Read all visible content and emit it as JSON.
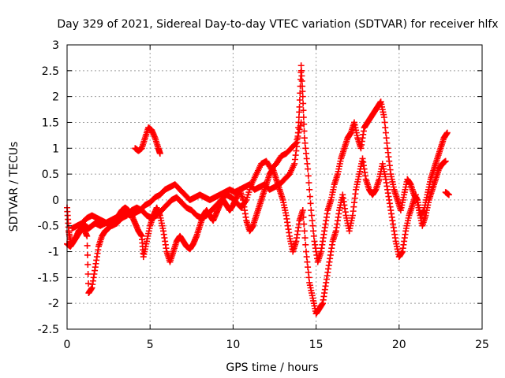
{
  "chart_data": {
    "type": "scatter",
    "title": "Day 329 of 2021, Sidereal Day-to-day VTEC variation (SDTVAR) for receiver hlfx",
    "xlabel": "GPS time / hours",
    "ylabel": "SDTVAR / TECUs",
    "xlim": [
      0,
      25
    ],
    "ylim": [
      -2.5,
      3
    ],
    "xticks": [
      0,
      5,
      10,
      15,
      20,
      25
    ],
    "xtick_labels": [
      "0",
      "5",
      "10",
      "15",
      "20",
      "25"
    ],
    "yticks": [
      -2.5,
      -2,
      -1.5,
      -1,
      -0.5,
      0,
      0.5,
      1,
      1.5,
      2,
      2.5,
      3
    ],
    "ytick_labels": [
      "-2.5",
      "-2",
      "-1.5",
      "-1",
      "-0.5",
      "0",
      "0.5",
      "1",
      "1.5",
      "2",
      "2.5",
      "3"
    ],
    "grid": true,
    "marker": "+",
    "series": [
      {
        "color": "#ff0000",
        "segments": [
          [
            [
              0.0,
              -0.15
            ],
            [
              0.1,
              -0.6
            ],
            [
              0.2,
              -0.8
            ],
            [
              0.3,
              -0.85
            ],
            [
              0.5,
              -0.75
            ],
            [
              0.7,
              -0.6
            ],
            [
              0.9,
              -0.55
            ],
            [
              1.1,
              -0.5
            ],
            [
              1.3,
              -0.55
            ],
            [
              1.5,
              -0.5
            ],
            [
              1.7,
              -0.45
            ],
            [
              2.0,
              -0.5
            ],
            [
              2.3,
              -0.45
            ],
            [
              2.6,
              -0.4
            ],
            [
              2.9,
              -0.35
            ],
            [
              3.2,
              -0.3
            ],
            [
              3.5,
              -0.25
            ],
            [
              3.8,
              -0.3
            ],
            [
              4.1,
              -0.25
            ],
            [
              4.4,
              -0.2
            ],
            [
              4.7,
              -0.1
            ],
            [
              5.0,
              -0.05
            ],
            [
              5.3,
              0.05
            ],
            [
              5.6,
              0.1
            ],
            [
              5.9,
              0.2
            ],
            [
              6.2,
              0.25
            ],
            [
              6.5,
              0.3
            ],
            [
              6.8,
              0.2
            ],
            [
              7.1,
              0.1
            ],
            [
              7.4,
              0.0
            ],
            [
              7.7,
              0.05
            ],
            [
              8.0,
              0.1
            ],
            [
              8.3,
              0.05
            ],
            [
              8.6,
              0.0
            ],
            [
              8.9,
              0.05
            ],
            [
              9.2,
              0.1
            ],
            [
              9.5,
              0.15
            ],
            [
              9.8,
              0.2
            ],
            [
              10.1,
              0.15
            ],
            [
              10.4,
              0.2
            ],
            [
              10.7,
              0.25
            ],
            [
              11.0,
              0.3
            ],
            [
              11.3,
              0.2
            ],
            [
              11.6,
              0.25
            ],
            [
              11.9,
              0.3
            ],
            [
              12.2,
              0.2
            ],
            [
              12.5,
              0.25
            ],
            [
              12.8,
              0.3
            ],
            [
              13.1,
              0.4
            ],
            [
              13.4,
              0.5
            ],
            [
              13.7,
              0.7
            ],
            [
              13.9,
              1.2
            ],
            [
              14.0,
              1.8
            ],
            [
              14.1,
              2.6
            ],
            [
              14.2,
              2.0
            ],
            [
              14.3,
              1.2
            ],
            [
              14.5,
              0.6
            ],
            [
              14.7,
              -0.2
            ],
            [
              14.9,
              -0.8
            ],
            [
              15.1,
              -1.2
            ],
            [
              15.3,
              -1.0
            ],
            [
              15.5,
              -0.6
            ],
            [
              15.7,
              -0.2
            ],
            [
              15.9,
              0.0
            ],
            [
              16.1,
              0.3
            ],
            [
              16.3,
              0.5
            ],
            [
              16.5,
              0.8
            ],
            [
              16.7,
              1.0
            ],
            [
              16.9,
              1.2
            ],
            [
              17.1,
              1.3
            ],
            [
              17.3,
              1.5
            ],
            [
              17.5,
              1.2
            ],
            [
              17.7,
              1.0
            ],
            [
              17.9,
              1.4
            ],
            [
              18.1,
              1.5
            ],
            [
              18.3,
              1.6
            ],
            [
              18.5,
              1.7
            ],
            [
              18.7,
              1.8
            ],
            [
              18.9,
              1.9
            ],
            [
              19.1,
              1.6
            ],
            [
              19.3,
              1.0
            ],
            [
              19.5,
              0.5
            ],
            [
              19.7,
              0.2
            ],
            [
              19.9,
              0.0
            ],
            [
              20.1,
              -0.2
            ],
            [
              20.3,
              0.1
            ],
            [
              20.5,
              0.4
            ],
            [
              20.7,
              0.3
            ],
            [
              20.9,
              0.1
            ],
            [
              21.1,
              0.0
            ],
            [
              21.3,
              -0.3
            ],
            [
              21.5,
              -0.2
            ],
            [
              21.7,
              0.1
            ],
            [
              21.9,
              0.4
            ],
            [
              22.1,
              0.6
            ],
            [
              22.3,
              0.8
            ],
            [
              22.5,
              1.0
            ],
            [
              22.7,
              1.2
            ],
            [
              22.9,
              1.3
            ]
          ],
          [
            [
              0.0,
              -0.85
            ],
            [
              0.2,
              -0.9
            ],
            [
              0.4,
              -0.8
            ],
            [
              0.6,
              -0.7
            ],
            [
              0.8,
              -0.6
            ],
            [
              1.0,
              -0.55
            ],
            [
              1.2,
              -0.7
            ],
            [
              1.3,
              -1.8
            ],
            [
              1.5,
              -1.7
            ],
            [
              1.7,
              -1.3
            ],
            [
              1.9,
              -0.9
            ],
            [
              2.1,
              -0.7
            ],
            [
              2.3,
              -0.6
            ],
            [
              2.5,
              -0.55
            ],
            [
              2.7,
              -0.45
            ],
            [
              2.9,
              -0.4
            ],
            [
              3.1,
              -0.3
            ],
            [
              3.3,
              -0.2
            ],
            [
              3.5,
              -0.15
            ],
            [
              3.7,
              -0.2
            ],
            [
              3.9,
              -0.3
            ],
            [
              4.1,
              -0.45
            ],
            [
              4.3,
              -0.6
            ],
            [
              4.5,
              -0.7
            ],
            [
              4.6,
              -1.1
            ],
            [
              4.8,
              -0.8
            ],
            [
              5.0,
              -0.5
            ],
            [
              5.2,
              -0.3
            ],
            [
              5.4,
              -0.15
            ],
            [
              5.6,
              -0.3
            ],
            [
              5.8,
              -0.6
            ],
            [
              6.0,
              -1.0
            ],
            [
              6.2,
              -1.2
            ],
            [
              6.4,
              -1.0
            ],
            [
              6.6,
              -0.8
            ],
            [
              6.8,
              -0.7
            ],
            [
              7.0,
              -0.8
            ],
            [
              7.2,
              -0.9
            ],
            [
              7.4,
              -0.95
            ],
            [
              7.6,
              -0.85
            ],
            [
              7.8,
              -0.7
            ],
            [
              8.0,
              -0.5
            ],
            [
              8.2,
              -0.3
            ],
            [
              8.4,
              -0.2
            ],
            [
              8.6,
              -0.3
            ],
            [
              8.8,
              -0.4
            ],
            [
              9.0,
              -0.25
            ],
            [
              9.2,
              -0.1
            ],
            [
              9.4,
              0.0
            ],
            [
              9.6,
              -0.1
            ],
            [
              9.8,
              -0.2
            ],
            [
              10.0,
              -0.1
            ],
            [
              10.2,
              0.05
            ],
            [
              10.4,
              0.2
            ],
            [
              10.6,
              0.0
            ],
            [
              10.8,
              -0.4
            ],
            [
              11.0,
              -0.6
            ],
            [
              11.2,
              -0.5
            ],
            [
              11.4,
              -0.3
            ],
            [
              11.6,
              -0.1
            ],
            [
              11.8,
              0.1
            ],
            [
              12.0,
              0.3
            ],
            [
              12.2,
              0.5
            ],
            [
              12.4,
              0.6
            ],
            [
              12.6,
              0.4
            ],
            [
              12.8,
              0.2
            ],
            [
              13.0,
              0.0
            ],
            [
              13.2,
              -0.3
            ],
            [
              13.4,
              -0.7
            ],
            [
              13.6,
              -1.0
            ],
            [
              13.8,
              -0.8
            ],
            [
              14.0,
              -0.4
            ],
            [
              14.2,
              -0.2
            ],
            [
              14.4,
              -1.0
            ],
            [
              14.6,
              -1.6
            ],
            [
              14.8,
              -1.9
            ],
            [
              15.0,
              -2.2
            ],
            [
              15.2,
              -2.1
            ],
            [
              15.4,
              -2.0
            ],
            [
              15.6,
              -1.6
            ],
            [
              15.8,
              -1.2
            ],
            [
              16.0,
              -0.8
            ],
            [
              16.2,
              -0.6
            ],
            [
              16.4,
              -0.2
            ],
            [
              16.6,
              0.1
            ],
            [
              16.8,
              -0.3
            ],
            [
              17.0,
              -0.6
            ],
            [
              17.2,
              -0.3
            ],
            [
              17.4,
              0.2
            ],
            [
              17.6,
              0.5
            ],
            [
              17.8,
              0.8
            ],
            [
              18.0,
              0.4
            ],
            [
              18.2,
              0.2
            ],
            [
              18.4,
              0.1
            ],
            [
              18.6,
              0.2
            ],
            [
              18.8,
              0.4
            ],
            [
              19.0,
              0.7
            ],
            [
              19.2,
              0.4
            ],
            [
              19.4,
              0.0
            ],
            [
              19.6,
              -0.4
            ],
            [
              19.8,
              -0.8
            ],
            [
              20.0,
              -1.1
            ],
            [
              20.2,
              -1.0
            ],
            [
              20.4,
              -0.6
            ],
            [
              20.6,
              -0.3
            ],
            [
              20.8,
              -0.1
            ],
            [
              21.0,
              0.1
            ],
            [
              21.2,
              -0.2
            ],
            [
              21.4,
              -0.5
            ],
            [
              21.6,
              -0.3
            ],
            [
              21.8,
              0.0
            ],
            [
              22.0,
              0.2
            ],
            [
              22.2,
              0.4
            ],
            [
              22.4,
              0.6
            ],
            [
              22.6,
              0.7
            ],
            [
              22.8,
              0.75
            ]
          ],
          [
            [
              0.3,
              -0.55
            ],
            [
              0.6,
              -0.5
            ],
            [
              0.9,
              -0.45
            ],
            [
              1.2,
              -0.35
            ],
            [
              1.5,
              -0.3
            ],
            [
              1.8,
              -0.35
            ],
            [
              2.1,
              -0.4
            ],
            [
              2.4,
              -0.45
            ],
            [
              2.7,
              -0.5
            ],
            [
              3.0,
              -0.45
            ],
            [
              3.3,
              -0.35
            ],
            [
              3.6,
              -0.3
            ],
            [
              3.9,
              -0.2
            ],
            [
              4.2,
              -0.15
            ],
            [
              4.5,
              -0.2
            ],
            [
              4.8,
              -0.3
            ],
            [
              5.1,
              -0.35
            ],
            [
              5.4,
              -0.3
            ],
            [
              5.7,
              -0.2
            ],
            [
              6.0,
              -0.1
            ],
            [
              6.3,
              0.0
            ],
            [
              6.6,
              0.05
            ],
            [
              6.9,
              -0.05
            ],
            [
              7.2,
              -0.15
            ],
            [
              7.5,
              -0.2
            ],
            [
              7.8,
              -0.3
            ],
            [
              8.1,
              -0.35
            ],
            [
              8.4,
              -0.3
            ],
            [
              8.7,
              -0.2
            ],
            [
              9.0,
              -0.1
            ],
            [
              9.3,
              0.0
            ],
            [
              9.6,
              0.1
            ],
            [
              9.9,
              0.05
            ],
            [
              10.2,
              -0.05
            ],
            [
              10.5,
              -0.15
            ],
            [
              10.8,
              0.0
            ],
            [
              11.1,
              0.3
            ],
            [
              11.4,
              0.5
            ],
            [
              11.7,
              0.7
            ],
            [
              12.0,
              0.75
            ],
            [
              12.3,
              0.6
            ],
            [
              12.6,
              0.7
            ],
            [
              12.9,
              0.85
            ],
            [
              13.2,
              0.9
            ],
            [
              13.5,
              1.0
            ],
            [
              13.8,
              1.1
            ],
            [
              14.1,
              1.5
            ]
          ],
          [
            [
              4.1,
              1.0
            ],
            [
              4.3,
              0.95
            ],
            [
              4.5,
              1.0
            ],
            [
              4.7,
              1.2
            ],
            [
              4.9,
              1.4
            ],
            [
              5.1,
              1.35
            ],
            [
              5.3,
              1.2
            ],
            [
              5.5,
              1.0
            ],
            [
              5.6,
              0.9
            ]
          ],
          [
            [
              22.8,
              0.15
            ],
            [
              23.0,
              0.1
            ]
          ]
        ]
      }
    ]
  }
}
